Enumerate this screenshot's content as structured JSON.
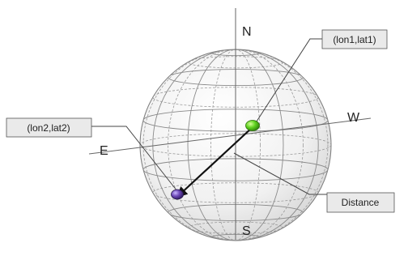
{
  "labels": {
    "north": "N",
    "south": "S",
    "east": "E",
    "west": "W"
  },
  "callouts": {
    "point1": "(lon1,lat1)",
    "point2": "(lon2,lat2)",
    "distance": "Distance"
  },
  "colors": {
    "point1": "#4fc21a",
    "point2": "#5a3a8c",
    "arrow": "#111111",
    "callout_fill": "#e9e9e9"
  }
}
